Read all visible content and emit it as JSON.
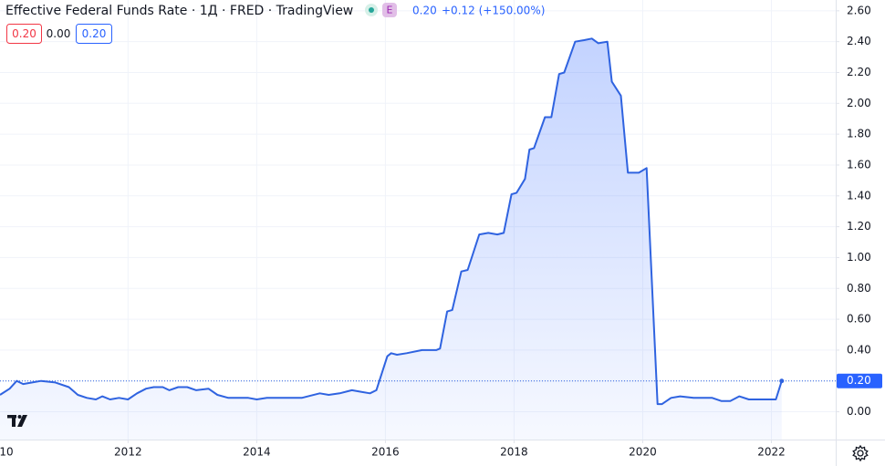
{
  "chart_data": {
    "type": "area",
    "title": "Effective Federal Funds Rate · 1Д · FRED · TradingView",
    "badge": "E",
    "header_price": "0.20",
    "header_change": "+0.12 (+150.00%)",
    "buttons": [
      "0.20",
      "0.00",
      "0.20"
    ],
    "color": "#2f63e0",
    "grid": true,
    "x": [
      2010.01,
      2010.16,
      2010.27,
      2010.37,
      2010.51,
      2010.65,
      2010.87,
      2011.08,
      2011.22,
      2011.36,
      2011.5,
      2011.6,
      2011.72,
      2011.86,
      2012.0,
      2012.14,
      2012.28,
      2012.4,
      2012.54,
      2012.64,
      2012.78,
      2012.92,
      2013.06,
      2013.25,
      2013.39,
      2013.56,
      2013.73,
      2013.87,
      2014.0,
      2014.16,
      2014.34,
      2014.48,
      2014.7,
      2014.98,
      2015.12,
      2015.29,
      2015.48,
      2015.62,
      2015.76,
      2015.86,
      2016.03,
      2016.09,
      2016.18,
      2016.33,
      2016.57,
      2016.79,
      2016.85,
      2016.96,
      2017.04,
      2017.18,
      2017.28,
      2017.46,
      2017.6,
      2017.74,
      2017.84,
      2017.96,
      2018.04,
      2018.17,
      2018.24,
      2018.31,
      2018.48,
      2018.58,
      2018.7,
      2018.78,
      2018.95,
      2019.09,
      2019.21,
      2019.31,
      2019.45,
      2019.52,
      2019.66,
      2019.77,
      2019.94,
      2020.06,
      2020.23,
      2020.3,
      2020.44,
      2020.58,
      2020.79,
      2021.08,
      2021.22,
      2021.36,
      2021.5,
      2021.65,
      2021.86,
      2022.07,
      2022.16
    ],
    "values": [
      0.11,
      0.15,
      0.2,
      0.18,
      0.19,
      0.2,
      0.19,
      0.16,
      0.11,
      0.09,
      0.08,
      0.1,
      0.08,
      0.09,
      0.08,
      0.12,
      0.15,
      0.16,
      0.16,
      0.14,
      0.16,
      0.16,
      0.14,
      0.15,
      0.11,
      0.09,
      0.09,
      0.09,
      0.08,
      0.09,
      0.09,
      0.09,
      0.09,
      0.12,
      0.11,
      0.12,
      0.14,
      0.13,
      0.12,
      0.14,
      0.36,
      0.38,
      0.37,
      0.38,
      0.4,
      0.4,
      0.41,
      0.65,
      0.66,
      0.91,
      0.92,
      1.15,
      1.16,
      1.15,
      1.16,
      1.41,
      1.42,
      1.51,
      1.7,
      1.71,
      1.91,
      1.91,
      2.19,
      2.2,
      2.4,
      2.41,
      2.42,
      2.39,
      2.4,
      2.14,
      2.05,
      1.55,
      1.55,
      1.58,
      0.05,
      0.05,
      0.09,
      0.1,
      0.09,
      0.09,
      0.07,
      0.07,
      0.1,
      0.08,
      0.08,
      0.08,
      0.2
    ],
    "xlim": [
      2010.01,
      2023.0
    ],
    "xticks": [
      {
        "value": 2010,
        "label": "10"
      },
      2012,
      2014,
      2016,
      2018,
      2020,
      2022
    ],
    "ylim": [
      -0.18,
      2.67
    ],
    "yticks": [
      {
        "value": 0,
        "label": "0.00"
      },
      {
        "value": 0.2,
        "label": "0.20"
      },
      {
        "value": 0.4,
        "label": "0.40"
      },
      {
        "value": 0.6,
        "label": "0.60"
      },
      {
        "value": 0.8,
        "label": "0.80"
      },
      {
        "value": 1,
        "label": "1.00"
      },
      {
        "value": 1.2,
        "label": "1.20"
      },
      {
        "value": 1.4,
        "label": "1.40"
      },
      {
        "value": 1.6,
        "label": "1.60"
      },
      {
        "value": 1.8,
        "label": "1.80"
      },
      {
        "value": 2,
        "label": "2.00"
      },
      {
        "value": 2.2,
        "label": "2.20"
      },
      {
        "value": 2.4,
        "label": "2.40"
      },
      {
        "value": 2.6,
        "label": "2.60"
      }
    ],
    "price_label": {
      "value": 0.2,
      "label": "0.20"
    }
  }
}
